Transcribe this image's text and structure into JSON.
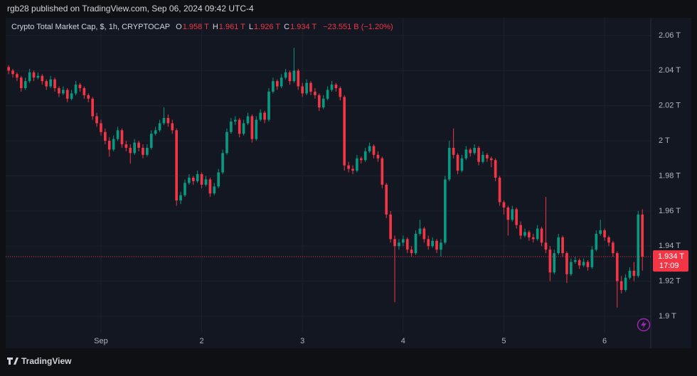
{
  "header": {
    "publisher": "rgb28 published on TradingView.com, Sep 06, 2024 09:42 UTC-4"
  },
  "footer": {
    "brand": "TradingView"
  },
  "chart_data": {
    "type": "candlestick",
    "title": "Crypto Total Market Cap, $, 1h, CRYPTOCAP",
    "ohlc_legend": {
      "o_label": "O",
      "o": "1.958 T",
      "h_label": "H",
      "h": "1.961 T",
      "l_label": "L",
      "l": "1.926 T",
      "c_label": "C",
      "c": "1.934 T",
      "change": "−23.551 B (−1.20%)"
    },
    "up_color": "#089981",
    "down_color": "#f23645",
    "last_price": {
      "value": 1.934,
      "label": "1.934 T",
      "countdown": "17:09"
    },
    "xlim": [
      -0.7,
      153
    ],
    "xticks": [
      {
        "value": 22,
        "label": "Sep"
      },
      {
        "value": 46,
        "label": "2"
      },
      {
        "value": 70,
        "label": "3"
      },
      {
        "value": 94,
        "label": "4"
      },
      {
        "value": 118,
        "label": "5"
      },
      {
        "value": 142,
        "label": "6"
      }
    ],
    "ylim": [
      1.8907,
      2.0701
    ],
    "yticks": [
      {
        "value": 1.9,
        "label": "1.9 T"
      },
      {
        "value": 1.92,
        "label": "1.92 T"
      },
      {
        "value": 1.94,
        "label": "1.94 T"
      },
      {
        "value": 1.96,
        "label": "1.96 T"
      },
      {
        "value": 1.98,
        "label": "1.98 T"
      },
      {
        "value": 2,
        "label": "2 T"
      },
      {
        "value": 2.02,
        "label": "2.02 T"
      },
      {
        "value": 2.04,
        "label": "2.04 T"
      },
      {
        "value": 2.06,
        "label": "2.06 T"
      }
    ],
    "grid": true,
    "ohlc": [
      [
        2.042,
        2.043,
        2.038,
        2.04
      ],
      [
        2.04,
        2.041,
        2.036,
        2.038
      ],
      [
        2.038,
        2.039,
        2.034,
        2.036
      ],
      [
        2.036,
        2.037,
        2.028,
        2.03
      ],
      [
        2.03,
        2.036,
        2.029,
        2.034
      ],
      [
        2.034,
        2.041,
        2.033,
        2.039
      ],
      [
        2.039,
        2.04,
        2.034,
        2.036
      ],
      [
        2.036,
        2.039,
        2.035,
        2.037
      ],
      [
        2.037,
        2.038,
        2.032,
        2.034
      ],
      [
        2.034,
        2.035,
        2.029,
        2.031
      ],
      [
        2.031,
        2.037,
        2.03,
        2.035
      ],
      [
        2.035,
        2.036,
        2.028,
        2.03
      ],
      [
        2.03,
        2.031,
        2.025,
        2.027
      ],
      [
        2.027,
        2.031,
        2.026,
        2.029
      ],
      [
        2.029,
        2.03,
        2.022,
        2.024
      ],
      [
        2.024,
        2.029,
        2.023,
        2.027
      ],
      [
        2.027,
        2.034,
        2.026,
        2.032
      ],
      [
        2.032,
        2.033,
        2.028,
        2.03
      ],
      [
        2.03,
        2.031,
        2.024,
        2.026
      ],
      [
        2.026,
        2.027,
        2.022,
        2.024
      ],
      [
        2.024,
        2.025,
        2.012,
        2.014
      ],
      [
        2.014,
        2.016,
        2.008,
        2.01
      ],
      [
        2.01,
        2.012,
        2.003,
        2.005
      ],
      [
        2.005,
        2.007,
        1.998,
        2.0
      ],
      [
        2.0,
        2.002,
        1.991,
        1.995
      ],
      [
        1.995,
        2.003,
        1.994,
        2.001
      ],
      [
        2.001,
        2.008,
        2.0,
        2.006
      ],
      [
        2.006,
        2.007,
        1.996,
        1.998
      ],
      [
        1.998,
        2.0,
        1.994,
        1.996
      ],
      [
        1.996,
        1.998,
        1.987,
        1.993
      ],
      [
        1.993,
        2.001,
        1.992,
        1.999
      ],
      [
        1.999,
        2.0,
        1.994,
        1.996
      ],
      [
        1.996,
        1.998,
        1.99,
        1.992
      ],
      [
        1.992,
        1.998,
        1.991,
        1.996
      ],
      [
        1.996,
        2.006,
        1.995,
        2.004
      ],
      [
        2.004,
        2.008,
        2.003,
        2.006
      ],
      [
        2.006,
        2.012,
        2.005,
        2.01
      ],
      [
        2.01,
        2.019,
        2.009,
        2.013
      ],
      [
        2.013,
        2.015,
        2.008,
        2.01
      ],
      [
        2.01,
        2.012,
        2.004,
        2.006
      ],
      [
        2.006,
        2.007,
        1.963,
        1.966
      ],
      [
        1.966,
        1.971,
        1.964,
        1.969
      ],
      [
        1.969,
        1.978,
        1.968,
        1.976
      ],
      [
        1.976,
        1.981,
        1.975,
        1.979
      ],
      [
        1.979,
        1.98,
        1.975,
        1.977
      ],
      [
        1.977,
        1.983,
        1.976,
        1.981
      ],
      [
        1.981,
        1.982,
        1.973,
        1.975
      ],
      [
        1.975,
        1.98,
        1.974,
        1.978
      ],
      [
        1.978,
        1.979,
        1.968,
        1.97
      ],
      [
        1.97,
        1.976,
        1.969,
        1.974
      ],
      [
        1.974,
        1.984,
        1.973,
        1.982
      ],
      [
        1.982,
        1.995,
        1.981,
        1.993
      ],
      [
        1.993,
        2.007,
        1.992,
        2.005
      ],
      [
        2.005,
        2.013,
        2.004,
        2.011
      ],
      [
        2.011,
        2.014,
        2.009,
        2.012
      ],
      [
        2.012,
        2.013,
        2.002,
        2.004
      ],
      [
        2.004,
        2.012,
        2.003,
        2.01
      ],
      [
        2.01,
        2.016,
        2.009,
        2.014
      ],
      [
        2.014,
        2.015,
        1.999,
        2.001
      ],
      [
        2.001,
        2.014,
        2.0,
        2.012
      ],
      [
        2.012,
        2.018,
        2.011,
        2.016
      ],
      [
        2.016,
        2.017,
        2.01,
        2.012
      ],
      [
        2.012,
        2.03,
        2.011,
        2.028
      ],
      [
        2.028,
        2.036,
        2.027,
        2.034
      ],
      [
        2.034,
        2.035,
        2.029,
        2.031
      ],
      [
        2.031,
        2.038,
        2.03,
        2.036
      ],
      [
        2.036,
        2.041,
        2.035,
        2.039
      ],
      [
        2.039,
        2.04,
        2.032,
        2.034
      ],
      [
        2.034,
        2.053,
        2.033,
        2.04
      ],
      [
        2.04,
        2.041,
        2.029,
        2.031
      ],
      [
        2.031,
        2.033,
        2.025,
        2.027
      ],
      [
        2.027,
        2.035,
        2.026,
        2.033
      ],
      [
        2.033,
        2.034,
        2.026,
        2.028
      ],
      [
        2.028,
        2.03,
        2.024,
        2.026
      ],
      [
        2.026,
        2.027,
        2.017,
        2.019
      ],
      [
        2.019,
        2.026,
        2.018,
        2.024
      ],
      [
        2.024,
        2.031,
        2.023,
        2.029
      ],
      [
        2.029,
        2.034,
        2.028,
        2.032
      ],
      [
        2.032,
        2.033,
        2.028,
        2.03
      ],
      [
        2.03,
        2.031,
        2.023,
        2.025
      ],
      [
        2.025,
        2.026,
        1.983,
        1.986
      ],
      [
        1.986,
        1.988,
        1.982,
        1.984
      ],
      [
        1.984,
        1.986,
        1.981,
        1.983
      ],
      [
        1.983,
        1.992,
        1.982,
        1.99
      ],
      [
        1.99,
        1.991,
        1.987,
        1.989
      ],
      [
        1.989,
        1.996,
        1.988,
        1.994
      ],
      [
        1.994,
        1.999,
        1.993,
        1.997
      ],
      [
        1.997,
        1.998,
        1.99,
        1.992
      ],
      [
        1.992,
        1.994,
        1.988,
        1.99
      ],
      [
        1.99,
        1.991,
        1.973,
        1.975
      ],
      [
        1.975,
        1.976,
        1.956,
        1.958
      ],
      [
        1.958,
        1.96,
        1.942,
        1.944
      ],
      [
        1.944,
        1.946,
        1.908,
        1.94
      ],
      [
        1.94,
        1.944,
        1.938,
        1.942
      ],
      [
        1.942,
        1.946,
        1.94,
        1.944
      ],
      [
        1.944,
        1.945,
        1.936,
        1.938
      ],
      [
        1.938,
        1.94,
        1.934,
        1.936
      ],
      [
        1.936,
        1.949,
        1.935,
        1.947
      ],
      [
        1.947,
        1.955,
        1.946,
        1.95
      ],
      [
        1.95,
        1.951,
        1.942,
        1.944
      ],
      [
        1.944,
        1.946,
        1.938,
        1.94
      ],
      [
        1.94,
        1.945,
        1.939,
        1.943
      ],
      [
        1.943,
        1.944,
        1.936,
        1.938
      ],
      [
        1.938,
        1.944,
        1.934,
        1.942
      ],
      [
        1.942,
        1.98,
        1.941,
        1.978
      ],
      [
        1.978,
        2.0,
        1.977,
        1.996
      ],
      [
        1.996,
        2.007,
        1.99,
        1.992
      ],
      [
        1.992,
        1.993,
        1.981,
        1.983
      ],
      [
        1.983,
        1.992,
        1.982,
        1.99
      ],
      [
        1.99,
        1.997,
        1.989,
        1.995
      ],
      [
        1.995,
        1.996,
        1.991,
        1.993
      ],
      [
        1.993,
        1.998,
        1.992,
        1.996
      ],
      [
        1.996,
        1.997,
        1.986,
        1.988
      ],
      [
        1.988,
        1.994,
        1.987,
        1.992
      ],
      [
        1.992,
        1.993,
        1.988,
        1.99
      ],
      [
        1.99,
        1.991,
        1.985,
        1.989
      ],
      [
        1.989,
        1.99,
        1.977,
        1.979
      ],
      [
        1.979,
        1.98,
        1.963,
        1.965
      ],
      [
        1.965,
        1.966,
        1.958,
        1.962
      ],
      [
        1.962,
        1.963,
        1.946,
        1.955
      ],
      [
        1.955,
        1.963,
        1.954,
        1.961
      ],
      [
        1.961,
        1.962,
        1.95,
        1.952
      ],
      [
        1.952,
        1.954,
        1.944,
        1.946
      ],
      [
        1.946,
        1.95,
        1.945,
        1.948
      ],
      [
        1.948,
        1.949,
        1.943,
        1.945
      ],
      [
        1.945,
        1.947,
        1.942,
        1.944
      ],
      [
        1.944,
        1.952,
        1.943,
        1.95
      ],
      [
        1.95,
        1.951,
        1.94,
        1.942
      ],
      [
        1.942,
        1.968,
        1.936,
        1.938
      ],
      [
        1.938,
        1.94,
        1.92,
        1.925
      ],
      [
        1.925,
        1.938,
        1.924,
        1.936
      ],
      [
        1.936,
        1.947,
        1.935,
        1.945
      ],
      [
        1.945,
        1.946,
        1.934,
        1.936
      ],
      [
        1.936,
        1.937,
        1.919,
        1.924
      ],
      [
        1.924,
        1.933,
        1.923,
        1.931
      ],
      [
        1.931,
        1.934,
        1.93,
        1.932
      ],
      [
        1.932,
        1.933,
        1.927,
        1.929
      ],
      [
        1.929,
        1.933,
        1.928,
        1.931
      ],
      [
        1.931,
        1.932,
        1.926,
        1.928
      ],
      [
        1.928,
        1.94,
        1.927,
        1.938
      ],
      [
        1.938,
        1.949,
        1.937,
        1.947
      ],
      [
        1.947,
        1.955,
        1.946,
        1.949
      ],
      [
        1.949,
        1.95,
        1.943,
        1.945
      ],
      [
        1.945,
        1.946,
        1.94,
        1.942
      ],
      [
        1.942,
        1.943,
        1.934,
        1.936
      ],
      [
        1.936,
        1.937,
        1.905,
        1.92
      ],
      [
        1.92,
        1.923,
        1.913,
        1.915
      ],
      [
        1.915,
        1.924,
        1.914,
        1.922
      ],
      [
        1.922,
        1.928,
        1.921,
        1.926
      ],
      [
        1.926,
        1.931,
        1.92,
        1.923
      ],
      [
        1.923,
        1.96,
        1.922,
        1.958
      ],
      [
        1.958,
        1.961,
        1.926,
        1.934
      ]
    ]
  }
}
